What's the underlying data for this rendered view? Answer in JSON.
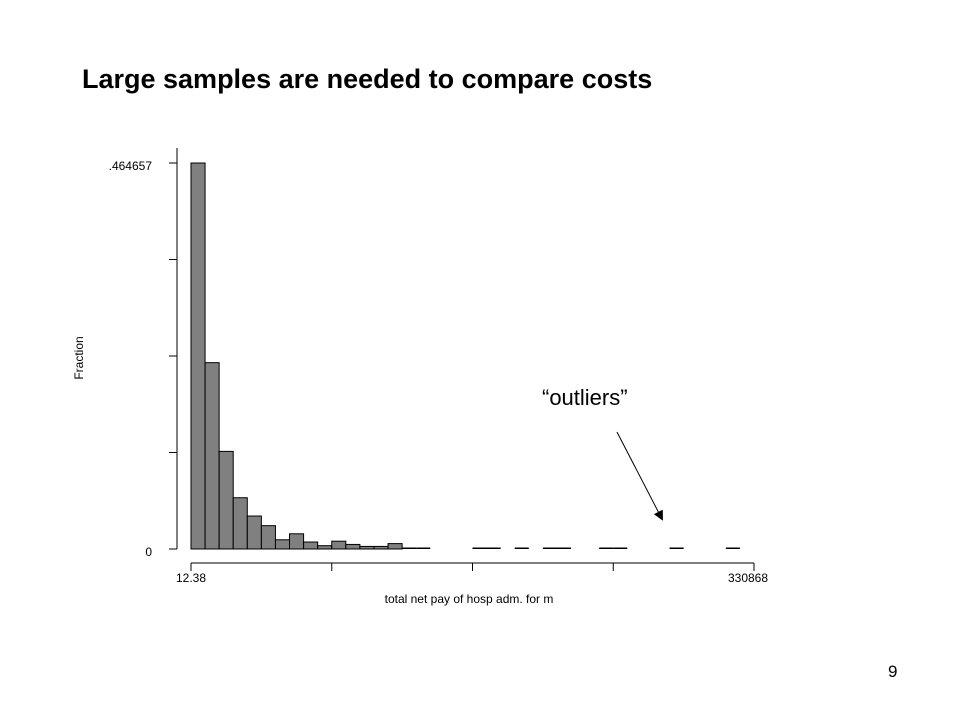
{
  "slide": {
    "title": "Large samples are needed to compare costs",
    "page_number": "9",
    "annotation": "“outliers”"
  },
  "chart_data": {
    "type": "bar",
    "title": "",
    "xlabel": "total net pay of hosp adm. for m",
    "ylabel": "Fraction",
    "xlim": [
      12.38,
      330868
    ],
    "ylim": [
      0,
      0.464657
    ],
    "x_tick_labels": [
      "12.38",
      "330868"
    ],
    "y_tick_labels": [
      "0",
      ".464657"
    ],
    "grid": false,
    "bin_count": 40,
    "values": [
      0.464657,
      0.2243,
      0.1175,
      0.0617,
      0.0397,
      0.0281,
      0.0111,
      0.0183,
      0.0084,
      0.004,
      0.0094,
      0.0055,
      0.0031,
      0.0031,
      0.0065,
      0.0018,
      0.0012,
      0.0,
      0.0,
      0.0,
      0.0008,
      0.0008,
      0.0,
      0.0008,
      0.0,
      0.0008,
      0.0008,
      0.0,
      0.0,
      0.0008,
      0.0008,
      0.0,
      0.0,
      0.0,
      0.0008,
      0.0,
      0.0,
      0.0,
      0.0008,
      0.0
    ]
  }
}
